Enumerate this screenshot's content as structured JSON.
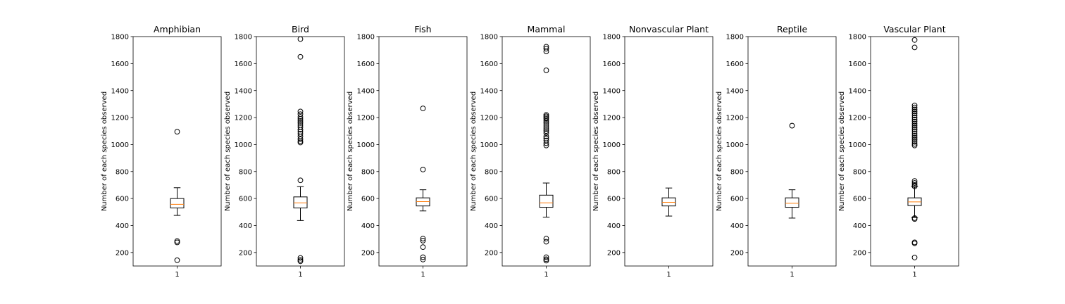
{
  "chart_data": [
    {
      "type": "box",
      "title": "Amphibian",
      "ylabel": "Number of each species observed",
      "xticks": [
        "1"
      ],
      "ylim": [
        100,
        1800
      ],
      "yticks": [
        200,
        400,
        600,
        800,
        1000,
        1200,
        1400,
        1600,
        1800
      ],
      "box": {
        "whisker_low": 475,
        "q1": 530,
        "median": 557,
        "q3": 600,
        "whisker_high": 680
      },
      "outliers": [
        1095,
        285,
        275,
        143
      ]
    },
    {
      "type": "box",
      "title": "Bird",
      "ylabel": "Number of each species observed",
      "xticks": [
        "1"
      ],
      "ylim": [
        100,
        1800
      ],
      "yticks": [
        200,
        400,
        600,
        800,
        1000,
        1200,
        1400,
        1600,
        1800
      ],
      "box": {
        "whisker_low": 437,
        "q1": 530,
        "median": 568,
        "q3": 612,
        "whisker_high": 688
      },
      "outliers": [
        1782,
        1650,
        1245,
        1225,
        1205,
        1190,
        1175,
        1160,
        1145,
        1130,
        1110,
        1095,
        1080,
        1060,
        1040,
        1025,
        1015,
        735,
        160,
        145,
        135
      ]
    },
    {
      "type": "box",
      "title": "Fish",
      "ylabel": "Number of each species observed",
      "xticks": [
        "1"
      ],
      "ylim": [
        100,
        1800
      ],
      "yticks": [
        200,
        400,
        600,
        800,
        1000,
        1200,
        1400,
        1600,
        1800
      ],
      "box": {
        "whisker_low": 508,
        "q1": 545,
        "median": 577,
        "q3": 605,
        "whisker_high": 665
      },
      "outliers": [
        1268,
        815,
        303,
        288,
        240,
        165,
        148
      ]
    },
    {
      "type": "box",
      "title": "Mammal",
      "ylabel": "Number of each species observed",
      "xticks": [
        "1"
      ],
      "ylim": [
        100,
        1800
      ],
      "yticks": [
        200,
        400,
        600,
        800,
        1000,
        1200,
        1400,
        1600,
        1800
      ],
      "box": {
        "whisker_low": 462,
        "q1": 535,
        "median": 568,
        "q3": 625,
        "whisker_high": 715
      },
      "outliers": [
        1725,
        1710,
        1690,
        1550,
        1220,
        1210,
        1200,
        1190,
        1175,
        1160,
        1145,
        1130,
        1115,
        1100,
        1085,
        1060,
        1045,
        1030,
        1010,
        993,
        303,
        280,
        165,
        150,
        140
      ]
    },
    {
      "type": "box",
      "title": "Nonvascular Plant",
      "ylabel": "Number of each species observed",
      "xticks": [
        "1"
      ],
      "ylim": [
        100,
        1800
      ],
      "yticks": [
        200,
        400,
        600,
        800,
        1000,
        1200,
        1400,
        1600,
        1800
      ],
      "box": {
        "whisker_low": 470,
        "q1": 545,
        "median": 572,
        "q3": 605,
        "whisker_high": 678
      },
      "outliers": []
    },
    {
      "type": "box",
      "title": "Reptile",
      "ylabel": "Number of each species observed",
      "xticks": [
        "1"
      ],
      "ylim": [
        100,
        1800
      ],
      "yticks": [
        200,
        400,
        600,
        800,
        1000,
        1200,
        1400,
        1600,
        1800
      ],
      "box": {
        "whisker_low": 455,
        "q1": 535,
        "median": 565,
        "q3": 605,
        "whisker_high": 665
      },
      "outliers": [
        1140
      ]
    },
    {
      "type": "box",
      "title": "Vascular Plant",
      "ylabel": "Number of each species observed",
      "xticks": [
        "1"
      ],
      "ylim": [
        100,
        1800
      ],
      "yticks": [
        200,
        400,
        600,
        800,
        1000,
        1200,
        1400,
        1600,
        1800
      ],
      "box": {
        "whisker_low": 460,
        "q1": 548,
        "median": 575,
        "q3": 605,
        "whisker_high": 688
      },
      "outliers": [
        1775,
        1720,
        1290,
        1275,
        1260,
        1245,
        1230,
        1215,
        1200,
        1185,
        1170,
        1155,
        1140,
        1125,
        1110,
        1095,
        1080,
        1065,
        1050,
        1035,
        1020,
        1005,
        993,
        730,
        715,
        700,
        690,
        455,
        448,
        275,
        268,
        163
      ]
    }
  ]
}
